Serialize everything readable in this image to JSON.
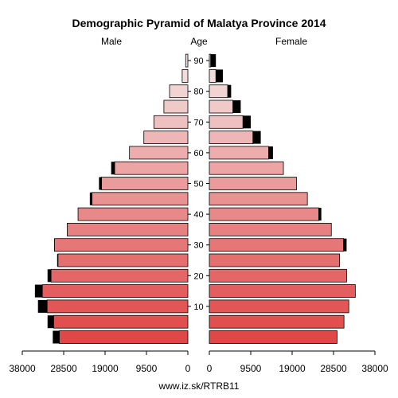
{
  "chart_data": {
    "type": "bar",
    "title": "Demographic Pyramid of Malatya Province 2014",
    "left_label": "Male",
    "center_label": "Age",
    "right_label": "Female",
    "source": "www.iz.sk/RTRB11",
    "age_groups": [
      "0-4",
      "5-9",
      "10-14",
      "15-19",
      "20-24",
      "25-29",
      "30-34",
      "35-39",
      "40-44",
      "45-49",
      "50-54",
      "55-59",
      "60-64",
      "65-69",
      "70-74",
      "75-79",
      "80-84",
      "85-89",
      "90+"
    ],
    "age_tick_labels": [
      "10",
      "20",
      "30",
      "40",
      "50",
      "60",
      "70",
      "80",
      "90"
    ],
    "age_tick_groups": [
      2,
      4,
      6,
      8,
      10,
      12,
      14,
      16,
      18
    ],
    "x_ticks_male": [
      38000,
      28500,
      19000,
      9500,
      0
    ],
    "x_ticks_female": [
      0,
      9500,
      19000,
      28500,
      38000
    ],
    "x_tick_labels_male": [
      "38000",
      "28500",
      "19000",
      "9500",
      "0"
    ],
    "x_tick_labels_female": [
      "0",
      "9500",
      "19000",
      "28500",
      "38000"
    ],
    "xlim": [
      0,
      38000
    ],
    "series": [
      {
        "name": "Male",
        "values": [
          29500,
          30800,
          32300,
          33400,
          31400,
          29800,
          30600,
          27700,
          25200,
          22000,
          19800,
          16800,
          13400,
          10100,
          7800,
          5500,
          4200,
          1300,
          500
        ],
        "excess": [
          1500,
          1400,
          2100,
          1700,
          800,
          200,
          100,
          0,
          0,
          500,
          600,
          800,
          0,
          0,
          0,
          0,
          0,
          0,
          0
        ]
      },
      {
        "name": "Female",
        "values": [
          29300,
          30900,
          32000,
          33500,
          31500,
          29900,
          30800,
          28000,
          25100,
          22500,
          20000,
          17000,
          13600,
          10000,
          7700,
          5400,
          4200,
          1500,
          300
        ],
        "excess": [
          0,
          0,
          0,
          0,
          0,
          0,
          700,
          0,
          600,
          0,
          0,
          0,
          1000,
          1800,
          1800,
          1800,
          800,
          1600,
          1200
        ]
      }
    ],
    "colors": {
      "young": "#e04848",
      "old": "#f4e6e6",
      "excess": "#000000",
      "axis": "#000000"
    }
  }
}
